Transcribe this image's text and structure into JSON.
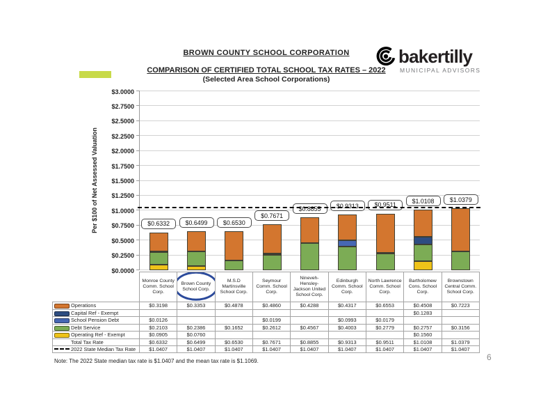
{
  "header": {
    "title": "BROWN COUNTY SCHOOL CORPORATION",
    "subtitle": "COMPARISON OF CERTIFIED TOTAL SCHOOL TAX RATES – 2022",
    "subtitle2": "(Selected Area School Corporations)",
    "logo": {
      "wordmark": "bakertilly",
      "tagline": "MUNICIPAL ADVISORS"
    }
  },
  "accent_bar_color": "#c8da49",
  "chart_data": {
    "type": "bar",
    "stacked": true,
    "title": "COMPARISON OF CERTIFIED TOTAL SCHOOL TAX RATES – 2022",
    "subtitle": "(Selected Area School Corporations)",
    "xlabel": "",
    "ylabel": "Per $100 of Net Assessed Valuation",
    "ylim": [
      0,
      3.0
    ],
    "ytick_step": 0.25,
    "ytick_labels": [
      "$3.0000",
      "$2.7500",
      "$2.5000",
      "$2.2500",
      "$2.0000",
      "$1.7500",
      "$1.5000",
      "$1.2500",
      "$1.0000",
      "$0.7500",
      "$0.5000",
      "$0.2500",
      "$0.0000"
    ],
    "grid": true,
    "legend_position": "table-left",
    "categories": [
      "Monroe County Comm. School Corp.",
      "Brown County School Corp.",
      "M.S.D Martinsville School Corp.",
      "Seymour Comm. School Corp.",
      "Nineveh-Hensley-Jackson United School Corp.",
      "Edinburgh Comm. School Corp.",
      "North Lawrence Comm. School Corp.",
      "Bartholomew Cons. School Corp.",
      "Brownstown Central Comm. School Corp."
    ],
    "series": [
      {
        "name": "Operating Ref - Exempt",
        "color": "#EFC319",
        "values": [
          0.0905,
          0.076,
          0,
          0,
          0,
          0,
          0,
          0.156,
          0
        ]
      },
      {
        "name": "Debt Service",
        "color": "#7CAC55",
        "values": [
          0.2103,
          0.2386,
          0.1652,
          0.2612,
          0.4567,
          0.4003,
          0.2779,
          0.2757,
          0.3156
        ]
      },
      {
        "name": "School Pension Debt",
        "color": "#4667B3",
        "values": [
          0.0126,
          0,
          0,
          0.0199,
          0,
          0.0993,
          0.0179,
          0,
          0
        ]
      },
      {
        "name": "Capital Ref - Exempt",
        "color": "#2E4D81",
        "values": [
          0,
          0,
          0,
          0,
          0,
          0,
          0,
          0.1283,
          0
        ]
      },
      {
        "name": "Operations",
        "color": "#D3762F",
        "values": [
          0.3198,
          0.3353,
          0.4878,
          0.486,
          0.4288,
          0.4317,
          0.6553,
          0.4508,
          0.7223
        ]
      }
    ],
    "totals": [
      0.6332,
      0.6499,
      0.653,
      0.7671,
      0.8855,
      0.9313,
      0.9511,
      1.0108,
      1.0379
    ],
    "total_labels": [
      "$0.6332",
      "$0.6499",
      "$0.6530",
      "$0.7671",
      "$0.8855",
      "$0.9313",
      "$0.9511",
      "$1.0108",
      "$1.0379"
    ],
    "reference_line": {
      "label": "2022 State Median Tax Rate",
      "value": 1.0407,
      "style": "dashed",
      "color": "#000000"
    },
    "annotation": {
      "highlighted_category": "Brown County School Corp.",
      "shape": "ellipse",
      "color": "#2B4A9B"
    }
  },
  "table": {
    "rows": [
      {
        "label": "Operations",
        "swatch": "#D3762F",
        "values": [
          "$0.3198",
          "$0.3353",
          "$0.4878",
          "$0.4860",
          "$0.4288",
          "$0.4317",
          "$0.6553",
          "$0.4508",
          "$0.7223"
        ]
      },
      {
        "label": "Capital Ref - Exempt",
        "swatch": "#2E4D81",
        "values": [
          "",
          "",
          "",
          "",
          "",
          "",
          "",
          "$0.1283",
          ""
        ]
      },
      {
        "label": "School Pension Debt",
        "swatch": "#4667B3",
        "values": [
          "$0.0126",
          "",
          "",
          "$0.0199",
          "",
          "$0.0993",
          "$0.0179",
          "",
          ""
        ]
      },
      {
        "label": "Debt Service",
        "swatch": "#7CAC55",
        "values": [
          "$0.2103",
          "$0.2386",
          "$0.1652",
          "$0.2612",
          "$0.4567",
          "$0.4003",
          "$0.2779",
          "$0.2757",
          "$0.3156"
        ]
      },
      {
        "label": "Operating Ref - Exempt",
        "swatch": "#EFC319",
        "values": [
          "$0.0905",
          "$0.0760",
          "",
          "",
          "",
          "",
          "",
          "$0.1560",
          ""
        ]
      },
      {
        "label": "Total Tax Rate",
        "swatch": null,
        "values": [
          "$0.6332",
          "$0.6499",
          "$0.6530",
          "$0.7671",
          "$0.8855",
          "$0.9313",
          "$0.9511",
          "$1.0108",
          "$1.0379"
        ]
      },
      {
        "label": "2022 State Median Tax Rate",
        "swatch": "dashed",
        "values": [
          "$1.0407",
          "$1.0407",
          "$1.0407",
          "$1.0407",
          "$1.0407",
          "$1.0407",
          "$1.0407",
          "$1.0407",
          "$1.0407"
        ]
      }
    ]
  },
  "note": "Note: The 2022 State median tax rate is $1.0407 and the mean tax rate is $1.1069.",
  "page_number": "6"
}
